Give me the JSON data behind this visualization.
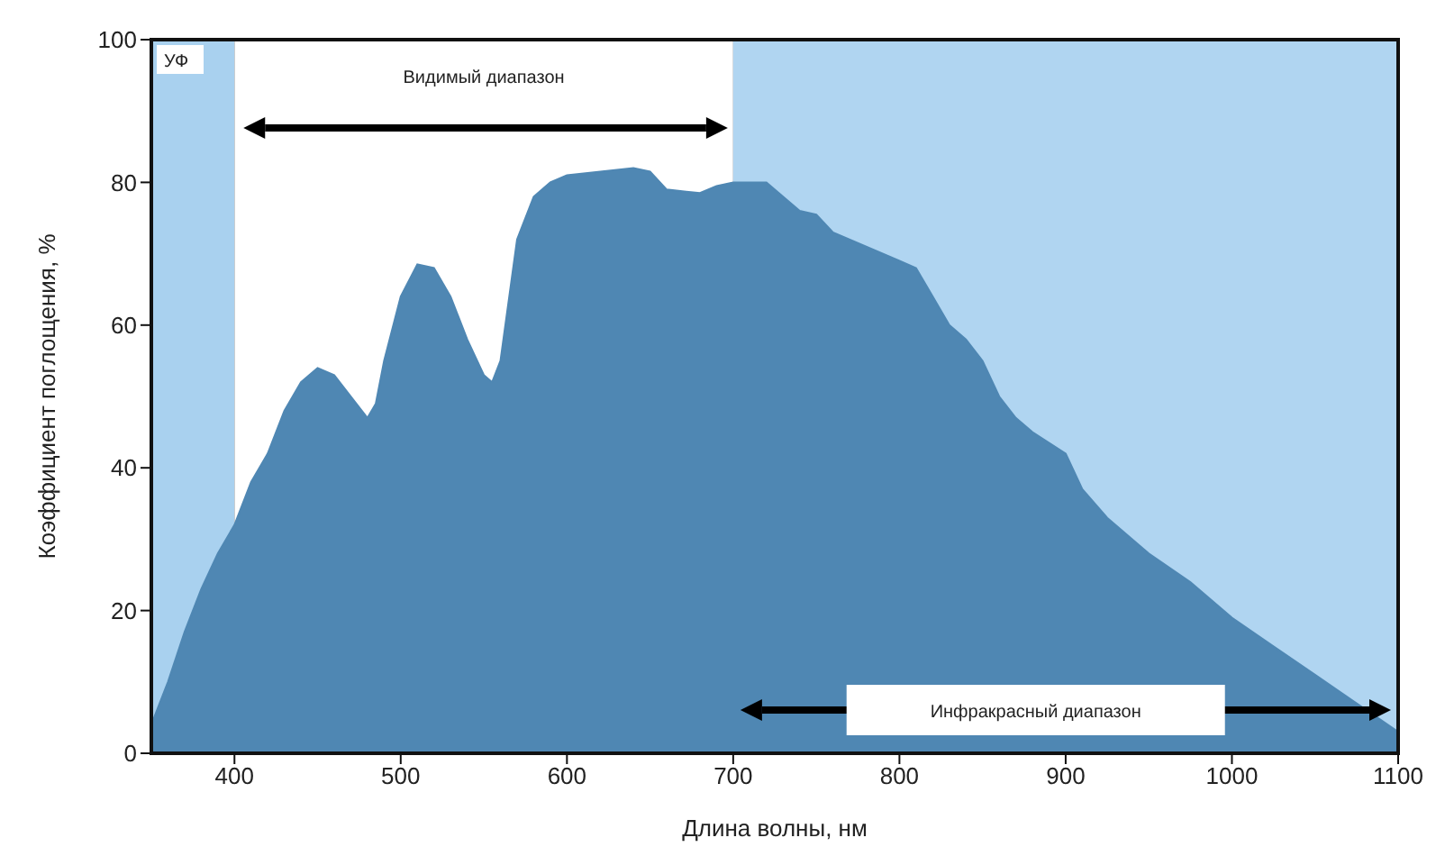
{
  "chart_data": {
    "type": "area",
    "xlabel": "Длина волны, нм",
    "ylabel": "Коэффициент поглощения, %",
    "series": [
      {
        "color": "#4f87b3",
        "x": [
          350,
          360,
          370,
          380,
          390,
          400,
          410,
          420,
          430,
          440,
          450,
          460,
          470,
          480,
          485,
          490,
          500,
          510,
          520,
          530,
          540,
          550,
          555,
          560,
          570,
          580,
          590,
          600,
          620,
          640,
          650,
          660,
          680,
          690,
          700,
          720,
          730,
          740,
          750,
          760,
          780,
          800,
          810,
          820,
          830,
          840,
          850,
          860,
          870,
          880,
          900,
          910,
          925,
          950,
          975,
          1000,
          1025,
          1050,
          1075,
          1100
        ],
        "values": [
          4,
          10,
          17,
          23,
          28,
          32,
          38,
          42,
          48,
          52,
          54,
          53,
          50,
          47,
          49,
          55,
          64,
          68.5,
          68,
          64,
          58,
          53,
          52,
          55,
          72,
          78,
          80,
          81,
          81.5,
          82,
          81.5,
          79,
          78.5,
          79.5,
          80,
          80,
          78,
          76,
          75.5,
          73,
          71,
          69,
          68,
          64,
          60,
          58,
          55,
          50,
          47,
          45,
          42,
          37,
          33,
          28,
          24,
          19,
          15,
          11,
          7,
          3
        ]
      }
    ],
    "xlim": [
      350,
      1100
    ],
    "xticks": [
      400,
      500,
      600,
      700,
      800,
      900,
      1000,
      1100
    ],
    "ylim": [
      0,
      100
    ],
    "yticks": [
      0,
      20,
      40,
      60,
      80,
      100
    ],
    "grid": true,
    "bands": [
      {
        "axis": "x",
        "from": 350,
        "to": 400,
        "label": "УФ",
        "color": "#a9d1ef"
      },
      {
        "axis": "x",
        "from": 400,
        "to": 700,
        "label": "Видимый диапазон",
        "color": "#ffffff"
      },
      {
        "axis": "x",
        "from": 700,
        "to": 1100,
        "label": "Инфракрасный диапазон",
        "color": "#b0d5f1"
      }
    ]
  }
}
